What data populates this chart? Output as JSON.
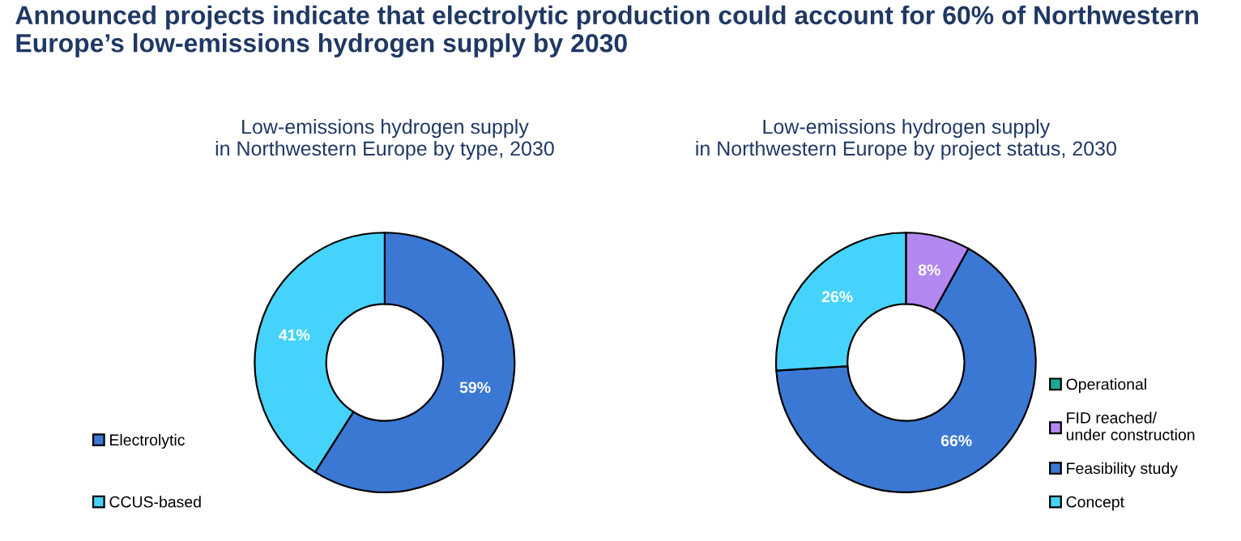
{
  "chart_data": [
    {
      "type": "donut",
      "title": "Low-emissions hydrogen supply\nin Northwestern Europe by type, 2030",
      "categories": [
        "Electrolytic",
        "CCUS-based"
      ],
      "values": [
        59,
        41
      ],
      "colors": [
        "#3b78d4",
        "#45d3fb"
      ],
      "value_labels": [
        "59%",
        "41%"
      ],
      "legend": "left",
      "annotations": [
        "Announced projects indicate that electrolytic production could account for 60% of Northwestern\nEurope’s low-emissions hydrogen supply by 2030"
      ]
    },
    {
      "type": "donut",
      "title": "Low-emissions hydrogen supply\nin Northwestern Europe by project status, 2030",
      "categories": [
        "Operational",
        "FID reached/\nunder construction",
        "Feasibility study",
        "Concept"
      ],
      "values": [
        0,
        8,
        66,
        26
      ],
      "colors": [
        "#1aa894",
        "#b388ee",
        "#3b78d4",
        "#45d3fb"
      ],
      "value_labels": [
        null,
        "8%",
        "66%",
        "26%"
      ],
      "legend": "right"
    }
  ]
}
